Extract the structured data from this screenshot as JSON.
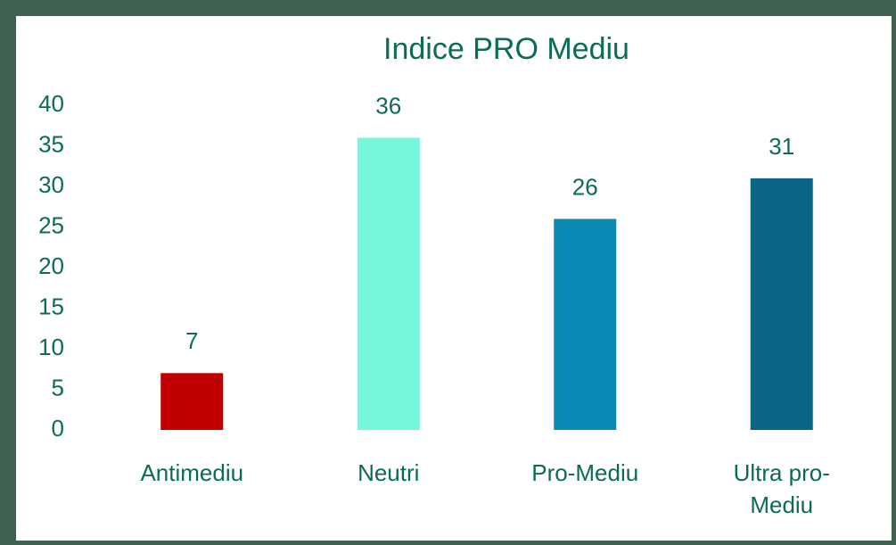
{
  "chart_data": {
    "type": "bar",
    "title": "Indice PRO Mediu",
    "categories": [
      "Antimediu",
      "Neutri",
      "Pro-Mediu",
      "Ultra pro-Mediu"
    ],
    "values": [
      7,
      36,
      26,
      31
    ],
    "colors": [
      "#c00000",
      "#76f7dc",
      "#0b89b5",
      "#0b6685"
    ],
    "ylim": [
      0,
      40
    ],
    "yticks": [
      0,
      5,
      10,
      15,
      20,
      25,
      30,
      35,
      40
    ],
    "grid": false
  }
}
